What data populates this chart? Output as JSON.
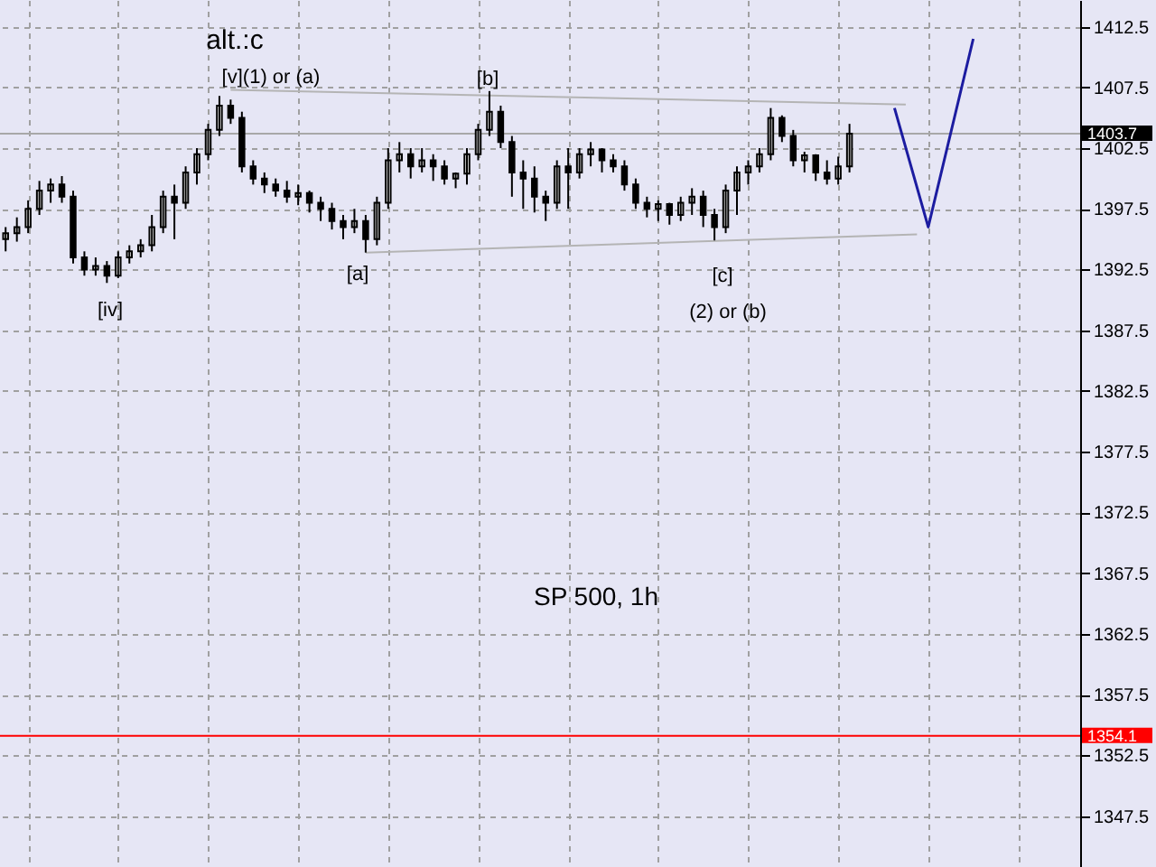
{
  "chart_data": {
    "type": "candlestick",
    "title": "SP 500, 1h",
    "categories": [
      null,
      null,
      null,
      null,
      null,
      null,
      null,
      null,
      null,
      null,
      null,
      null,
      null,
      null,
      null,
      null,
      null,
      null,
      null,
      null,
      null,
      null,
      null,
      null,
      null,
      null,
      null,
      null,
      null,
      null,
      null,
      null,
      null,
      null,
      null,
      null,
      null,
      null,
      null,
      null,
      null,
      null,
      null,
      null,
      null,
      null,
      null,
      null,
      null,
      null,
      null,
      null,
      null,
      null,
      null,
      null,
      null,
      null,
      null,
      null,
      null,
      null,
      null,
      null,
      null,
      null,
      null,
      null,
      null,
      null,
      null,
      null,
      null,
      null,
      null,
      null,
      null,
      null,
      null,
      null,
      null,
      null,
      null,
      null,
      null,
      null,
      null,
      null,
      null,
      null,
      null,
      null,
      null,
      null,
      null,
      null
    ],
    "color": "#000000",
    "ohlc": [
      [
        1395,
        1396,
        1394,
        1395.5
      ],
      [
        1395.5,
        1396.8,
        1394.8,
        1396
      ],
      [
        1396,
        1398.2,
        1395.5,
        1397.5
      ],
      [
        1397.5,
        1399.8,
        1397,
        1399
      ],
      [
        1399,
        1400,
        1398,
        1399.5
      ],
      [
        1399.5,
        1400.2,
        1398,
        1398.5
      ],
      [
        1398.5,
        1399,
        1393,
        1393.5
      ],
      [
        1393.5,
        1394,
        1392,
        1392.5
      ],
      [
        1392.5,
        1393.5,
        1392,
        1392.8
      ],
      [
        1392.8,
        1393.2,
        1391.4,
        1392
      ],
      [
        1392,
        1394,
        1391.8,
        1393.5
      ],
      [
        1393.5,
        1394.5,
        1393,
        1394
      ],
      [
        1394,
        1395,
        1393.5,
        1394.5
      ],
      [
        1394.5,
        1397,
        1394,
        1396
      ],
      [
        1396,
        1399,
        1395.5,
        1398.5
      ],
      [
        1398.5,
        1399.5,
        1395,
        1398
      ],
      [
        1398,
        1401,
        1397.5,
        1400.5
      ],
      [
        1400.5,
        1402.5,
        1399.5,
        1402
      ],
      [
        1402,
        1404.5,
        1401.5,
        1404
      ],
      [
        1404,
        1406.8,
        1403.5,
        1406
      ],
      [
        1406,
        1406.5,
        1404.5,
        1405
      ],
      [
        1405,
        1405.5,
        1400.5,
        1401
      ],
      [
        1401,
        1401.5,
        1399.5,
        1400
      ],
      [
        1400,
        1400.5,
        1398.8,
        1399.5
      ],
      [
        1399.5,
        1400,
        1398.5,
        1399
      ],
      [
        1399,
        1399.8,
        1398,
        1398.5
      ],
      [
        1398.5,
        1399.5,
        1397.8,
        1398.8
      ],
      [
        1398.8,
        1399,
        1397.2,
        1398
      ],
      [
        1398,
        1398.5,
        1396.5,
        1397.5
      ],
      [
        1397.5,
        1398,
        1395.8,
        1396.5
      ],
      [
        1396.5,
        1397,
        1395,
        1396
      ],
      [
        1396,
        1397.5,
        1395.5,
        1396.5
      ],
      [
        1396.5,
        1397,
        1393.9,
        1395
      ],
      [
        1395,
        1398.5,
        1394.5,
        1398
      ],
      [
        1398,
        1402.5,
        1397.5,
        1401.5
      ],
      [
        1401.5,
        1403,
        1400.5,
        1402
      ],
      [
        1402,
        1402.5,
        1400,
        1401
      ],
      [
        1401,
        1402.5,
        1400.5,
        1401.5
      ],
      [
        1401.5,
        1402,
        1399.8,
        1401
      ],
      [
        1401,
        1401.5,
        1399.5,
        1400
      ],
      [
        1400,
        1400.5,
        1399.2,
        1400.4
      ],
      [
        1400.4,
        1402.5,
        1399.5,
        1402
      ],
      [
        1402,
        1404.5,
        1401.5,
        1404
      ],
      [
        1404,
        1407.2,
        1403.5,
        1405.5
      ],
      [
        1405.5,
        1406,
        1402.5,
        1403
      ],
      [
        1403,
        1403.5,
        1398.5,
        1400.5
      ],
      [
        1400.5,
        1401.5,
        1397.5,
        1400
      ],
      [
        1400,
        1401,
        1397.2,
        1398.5
      ],
      [
        1398.5,
        1399,
        1396.5,
        1398
      ],
      [
        1398,
        1401.5,
        1397.5,
        1401
      ],
      [
        1401,
        1402.5,
        1397.5,
        1400.5
      ],
      [
        1400.5,
        1402.5,
        1400,
        1402
      ],
      [
        1402,
        1403,
        1401,
        1402.4
      ],
      [
        1402.4,
        1402.5,
        1400.5,
        1401.5
      ],
      [
        1401.5,
        1402,
        1400.5,
        1401
      ],
      [
        1401,
        1401.5,
        1399,
        1399.5
      ],
      [
        1399.5,
        1400,
        1397.5,
        1398
      ],
      [
        1398,
        1398.5,
        1396.8,
        1397.5
      ],
      [
        1397.5,
        1398.2,
        1396.5,
        1397.9
      ],
      [
        1397.9,
        1398,
        1396.2,
        1397
      ],
      [
        1397,
        1398.5,
        1396.5,
        1398
      ],
      [
        1398,
        1399.2,
        1397,
        1398.5
      ],
      [
        1398.5,
        1399,
        1396,
        1397
      ],
      [
        1397,
        1397.5,
        1394.9,
        1396
      ],
      [
        1396,
        1399.5,
        1395.5,
        1399
      ],
      [
        1399,
        1401,
        1397,
        1400.5
      ],
      [
        1400.5,
        1401.5,
        1399.5,
        1401
      ],
      [
        1401,
        1402.5,
        1400.5,
        1402
      ],
      [
        1402,
        1405.8,
        1401.5,
        1405
      ],
      [
        1405,
        1405.2,
        1403,
        1403.5
      ],
      [
        1403.5,
        1404,
        1401,
        1401.5
      ],
      [
        1401.5,
        1402.2,
        1400.5,
        1401.9
      ],
      [
        1401.9,
        1402,
        1399.8,
        1400.5
      ],
      [
        1400.5,
        1401.5,
        1399.5,
        1400
      ],
      [
        1400,
        1401.8,
        1399.5,
        1401
      ],
      [
        1401,
        1404.5,
        1400.5,
        1403.7
      ],
      null,
      null,
      null,
      null,
      null,
      null,
      null,
      null,
      null,
      null,
      null,
      null,
      null,
      null,
      null,
      null,
      null,
      null,
      null,
      null
    ],
    "series": [
      {
        "type": "line",
        "color": "#b4b4b4",
        "values": [
          null,
          null,
          null,
          null,
          null,
          null,
          null,
          null,
          null,
          null,
          null,
          null,
          null,
          null,
          null,
          null,
          null,
          null,
          null,
          null,
          1407.3,
          null,
          null,
          null,
          null,
          null,
          null,
          null,
          null,
          null,
          null,
          null,
          null,
          null,
          null,
          null,
          null,
          null,
          null,
          null,
          null,
          null,
          null,
          null,
          null,
          null,
          null,
          null,
          null,
          null,
          null,
          null,
          null,
          null,
          null,
          null,
          null,
          null,
          null,
          null,
          null,
          null,
          null,
          null,
          null,
          null,
          null,
          null,
          null,
          null,
          null,
          null,
          null,
          null,
          null,
          null,
          null,
          null,
          null,
          null,
          1406.1,
          null,
          null,
          null,
          null,
          null,
          null,
          null,
          null,
          null,
          null,
          null,
          null,
          null,
          null,
          null
        ]
      },
      {
        "type": "line",
        "color": "#b4b4b4",
        "values": [
          null,
          null,
          null,
          null,
          null,
          null,
          null,
          null,
          null,
          null,
          null,
          null,
          null,
          null,
          null,
          null,
          null,
          null,
          null,
          null,
          null,
          null,
          null,
          null,
          null,
          null,
          null,
          null,
          null,
          null,
          null,
          null,
          1393.9,
          null,
          null,
          null,
          null,
          null,
          null,
          null,
          null,
          null,
          null,
          null,
          null,
          null,
          null,
          null,
          null,
          null,
          null,
          null,
          null,
          null,
          null,
          null,
          null,
          null,
          null,
          null,
          null,
          null,
          null,
          null,
          null,
          null,
          null,
          null,
          null,
          null,
          null,
          null,
          null,
          null,
          null,
          null,
          null,
          null,
          null,
          null,
          null,
          1395.4,
          null,
          null,
          null,
          null,
          null,
          null,
          null,
          null,
          null,
          null,
          null,
          null,
          null,
          null
        ]
      },
      {
        "type": "line",
        "color": "#1c1ca0",
        "values": [
          null,
          null,
          null,
          null,
          null,
          null,
          null,
          null,
          null,
          null,
          null,
          null,
          null,
          null,
          null,
          null,
          null,
          null,
          null,
          null,
          null,
          null,
          null,
          null,
          null,
          null,
          null,
          null,
          null,
          null,
          null,
          null,
          null,
          null,
          null,
          null,
          null,
          null,
          null,
          null,
          null,
          null,
          null,
          null,
          null,
          null,
          null,
          null,
          null,
          null,
          null,
          null,
          null,
          null,
          null,
          null,
          null,
          null,
          null,
          null,
          null,
          null,
          null,
          null,
          null,
          null,
          null,
          null,
          null,
          null,
          null,
          null,
          null,
          null,
          null,
          null,
          null,
          null,
          null,
          1405.8,
          null,
          null,
          1396.0,
          null,
          null,
          null,
          1411.5,
          null,
          null,
          null,
          null,
          null,
          null,
          null,
          null,
          null
        ]
      }
    ],
    "ylim": [
      1343.3,
      1414.7
    ],
    "yticks": [
      1347.5,
      1352.5,
      1357.5,
      1362.5,
      1367.5,
      1372.5,
      1377.5,
      1382.5,
      1387.5,
      1392.5,
      1397.5,
      1402.5,
      1407.5,
      1412.5
    ],
    "grid": true,
    "tick_labels": "y",
    "ref_lines": [
      {
        "axis": "y",
        "value": 1403.7,
        "label": "1403.7",
        "color": "#a8a8a8"
      },
      {
        "axis": "y",
        "value": 1354.1,
        "label": "1354.1",
        "color": "#ff0000"
      }
    ],
    "annotations": [
      "alt.:c",
      "[v](1) or (a)",
      "[b]",
      "[iv]",
      "[a]",
      "[c]",
      "(2) or (b)"
    ]
  }
}
